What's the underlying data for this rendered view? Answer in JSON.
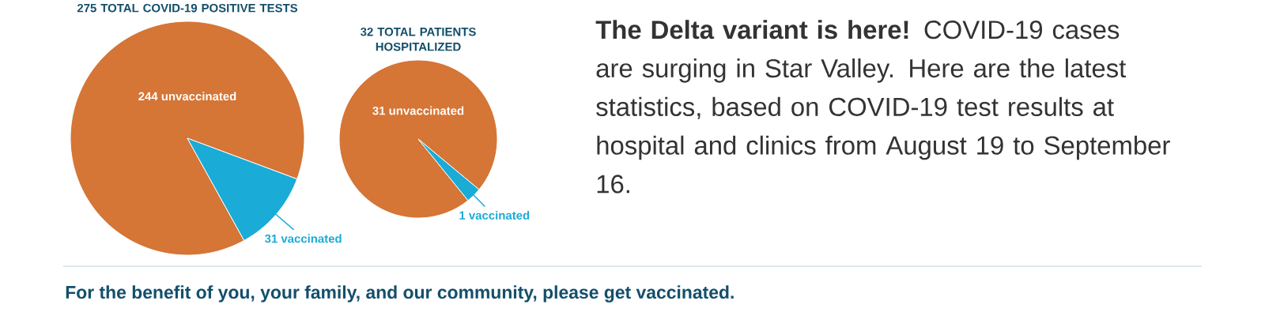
{
  "chart_data": [
    {
      "type": "pie",
      "title": "275 TOTAL COVID-19 POSITIVE TESTS",
      "categories": [
        "244 unvaccinated",
        "31 vaccinated"
      ],
      "values": [
        244,
        31
      ],
      "colors": [
        "#d57536",
        "#1aabd6"
      ]
    },
    {
      "type": "pie",
      "title": "32 TOTAL PATIENTS HOSPITALIZED",
      "categories": [
        "31 unvaccinated",
        "1 vaccinated"
      ],
      "values": [
        31,
        1
      ],
      "colors": [
        "#d57536",
        "#1aabd6"
      ]
    },
    {
      "type": "other",
      "annotations": [
        "**The Delta variant is here!** COVID-19 cases are surging in Star Valley. Here are the latest statistics, based on COVID-19 test results at hospital and clinics from August 19 to September 16.",
        "For the benefit of you, your family, and our community, please get vaccinated."
      ]
    }
  ]
}
